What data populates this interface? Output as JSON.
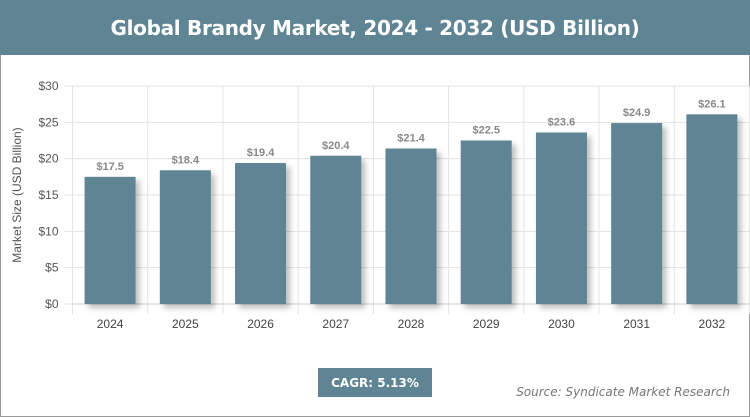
{
  "header": {
    "title": "Global Brandy Market, 2024 - 2032 (USD Billion)"
  },
  "chart_data": {
    "type": "bar",
    "title": "Global Brandy Market, 2024 - 2032 (USD Billion)",
    "ylabel": "Market Size (USD Billion)",
    "xlabel": "",
    "categories": [
      "2024",
      "2025",
      "2026",
      "2027",
      "2028",
      "2029",
      "2030",
      "2031",
      "2032"
    ],
    "values": [
      17.5,
      18.4,
      19.4,
      20.4,
      21.4,
      22.5,
      23.6,
      24.9,
      26.1
    ],
    "data_labels": [
      "$17.5",
      "$18.4",
      "$19.4",
      "$20.4",
      "$21.4",
      "$22.5",
      "$23.6",
      "$24.9",
      "$26.1"
    ],
    "ylim": [
      0,
      30
    ],
    "yticks": [
      "$0",
      "$5",
      "$10",
      "$15",
      "$20",
      "$25",
      "$30"
    ],
    "grid": true,
    "bar_color": "#5f8494"
  },
  "footer": {
    "cagr": "CAGR: 5.13%",
    "source": "Source: Syndicate Market Research"
  }
}
